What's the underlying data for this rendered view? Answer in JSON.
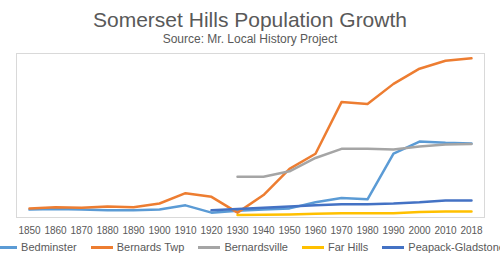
{
  "chart_data": {
    "type": "line",
    "title": "Somerset Hills Population Growth",
    "subtitle": "Source: Mr. Local History Project",
    "categories": [
      1850,
      1860,
      1870,
      1880,
      1890,
      1900,
      1910,
      1920,
      1930,
      1940,
      1950,
      1960,
      1970,
      1980,
      1990,
      2000,
      2010,
      2018
    ],
    "series": [
      {
        "name": "Bedminster",
        "color": "#5B9BD5",
        "values": [
          1300,
          1400,
          1300,
          1200,
          1200,
          1300,
          2000,
          800,
          1100,
          1300,
          1500,
          2500,
          3200,
          3000,
          10500,
          12500,
          12300,
          12200
        ]
      },
      {
        "name": "Bernards Twp",
        "color": "#ED7D31",
        "values": [
          1500,
          1700,
          1600,
          1800,
          1700,
          2300,
          4000,
          3400,
          800,
          3700,
          8000,
          10500,
          19000,
          18700,
          22000,
          24500,
          25800,
          26200
        ]
      },
      {
        "name": "Bernardsville",
        "color": "#A5A5A5",
        "values": [
          null,
          null,
          null,
          null,
          null,
          null,
          null,
          null,
          6700,
          6700,
          7600,
          9800,
          11300,
          11300,
          11200,
          11700,
          12000,
          12100
        ]
      },
      {
        "name": "Far Hills",
        "color": "#FFC000",
        "values": [
          null,
          null,
          null,
          null,
          null,
          null,
          null,
          null,
          400,
          450,
          500,
          600,
          700,
          700,
          700,
          900,
          1000,
          1000
        ]
      },
      {
        "name": "Peapack-Gladstone",
        "color": "#4472C4",
        "values": [
          null,
          null,
          null,
          null,
          null,
          null,
          null,
          1200,
          1400,
          1600,
          1800,
          2000,
          2200,
          2200,
          2300,
          2500,
          2800,
          2800
        ]
      }
    ],
    "ylim": [
      0,
      27000
    ],
    "yticks": [],
    "tick_labels": "x",
    "grid": false,
    "legend": "bottom"
  }
}
